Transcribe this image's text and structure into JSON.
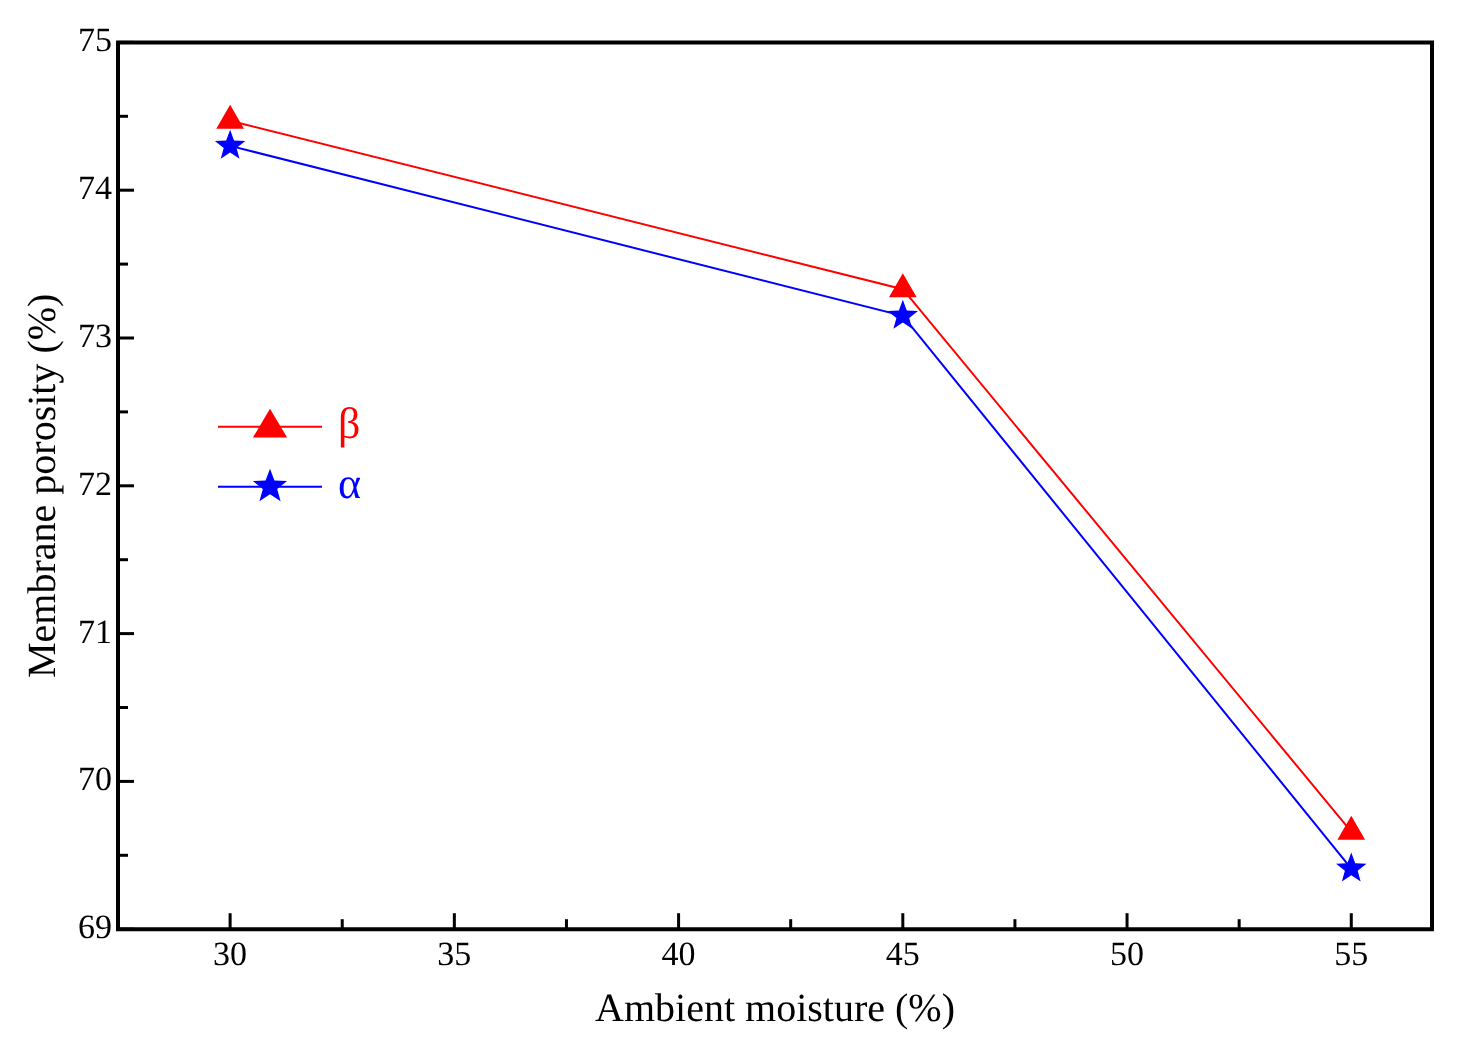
{
  "chart_data": {
    "type": "line",
    "xlabel": "Ambient moisture (%)",
    "ylabel": "Membrane porosity (%)",
    "x": [
      30,
      45,
      55
    ],
    "series": [
      {
        "name": "β",
        "color": "#ff0000",
        "values": [
          74.47,
          73.33,
          69.66
        ],
        "marker": "triangle"
      },
      {
        "name": "α",
        "color": "#0000ff",
        "values": [
          74.3,
          73.15,
          69.41
        ],
        "marker": "star"
      }
    ],
    "xlim": [
      27.5,
      56.8
    ],
    "xticks": [
      30,
      {
        "value": 32.5,
        "label": null
      },
      35,
      {
        "value": 37.5,
        "label": null
      },
      40,
      {
        "value": 42.5,
        "label": null
      },
      45,
      {
        "value": 47.5,
        "label": null
      },
      50,
      {
        "value": 52.5,
        "label": null
      },
      55
    ],
    "ylim": [
      69,
      75
    ],
    "yticks": [
      69,
      {
        "value": 69.5,
        "label": null
      },
      70,
      {
        "value": 70.5,
        "label": null
      },
      71,
      {
        "value": 71.5,
        "label": null
      },
      72,
      {
        "value": 72.5,
        "label": null
      },
      73,
      {
        "value": 73.5,
        "label": null
      },
      74,
      {
        "value": 74.5,
        "label": null
      },
      75
    ],
    "grid": false,
    "legend": "left",
    "line_style": "solid"
  }
}
